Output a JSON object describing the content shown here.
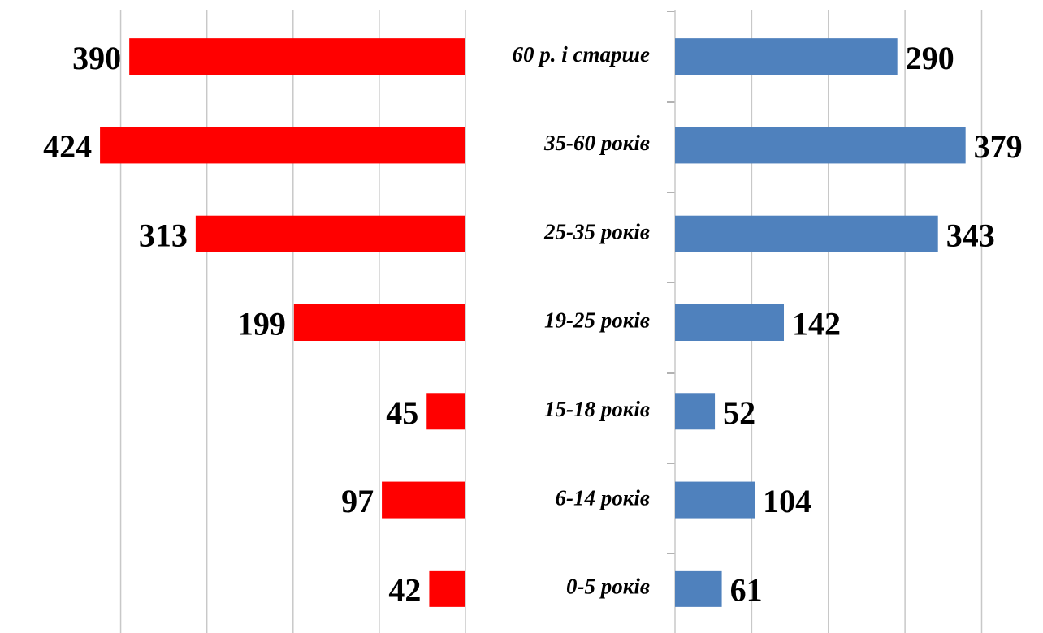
{
  "chart_data": {
    "type": "butterfly",
    "categories": [
      "60 р. і старше",
      "35-60 років",
      "25-35 років",
      "19-25 років",
      "15-18 років",
      "6-14 років",
      "0-5 років"
    ],
    "series": [
      {
        "color": "#ff0000",
        "values": [
          390,
          424,
          313,
          199,
          45,
          97,
          42
        ],
        "xlim": [
          0,
          540
        ],
        "xticks": [
          0,
          100,
          200,
          300,
          400
        ]
      },
      {
        "color": "#4f81bd",
        "values": [
          290,
          379,
          343,
          142,
          52,
          104,
          61
        ],
        "xlim": [
          0,
          480
        ],
        "xticks": [
          0,
          100,
          200,
          300,
          400
        ]
      }
    ],
    "grid": true
  }
}
